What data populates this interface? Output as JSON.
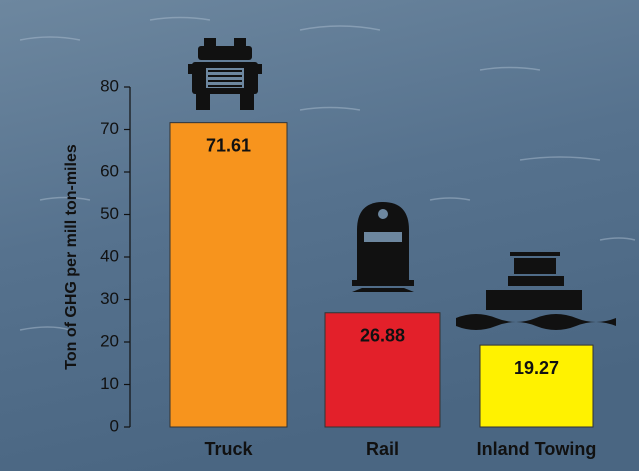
{
  "chart_data": {
    "type": "bar",
    "y_label": "Ton of GHG per mill ton-miles",
    "categories": [
      "Truck",
      "Rail",
      "Inland Towing"
    ],
    "values": [
      71.61,
      26.88,
      19.27
    ],
    "colors": [
      "#f7941d",
      "#e3202a",
      "#fff200"
    ],
    "ylim": [
      0,
      80
    ],
    "yticks": [
      0,
      10,
      20,
      30,
      40,
      50,
      60,
      70,
      80
    ],
    "grid": false
  }
}
